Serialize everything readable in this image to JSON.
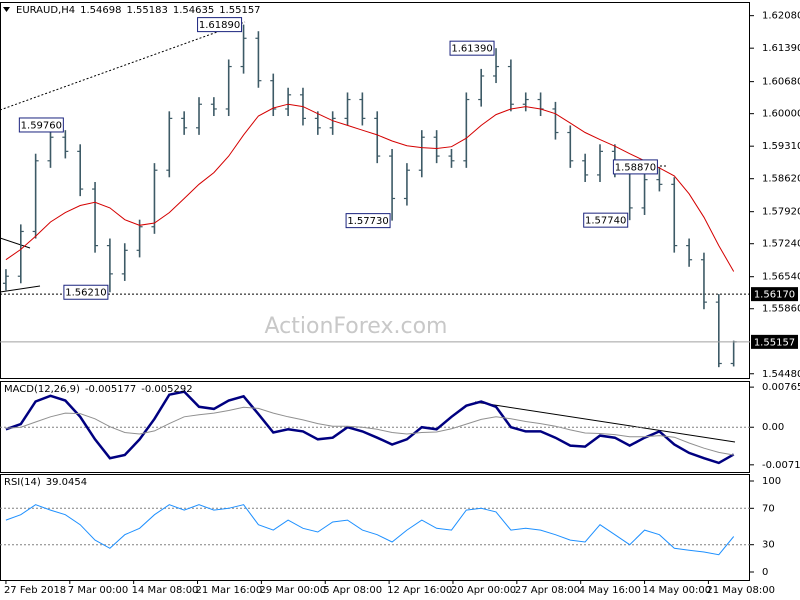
{
  "chart_data": [
    {
      "type": "ohlc",
      "title": "EURAUD,H4",
      "color": "#3d5a66",
      "open": [
        1.564,
        1.5655,
        1.575,
        1.59,
        1.595,
        1.592,
        1.584,
        1.572,
        1.566,
        1.571,
        1.576,
        1.588,
        1.599,
        1.597,
        1.602,
        1.601,
        1.61,
        1.616,
        1.607,
        1.601,
        1.604,
        1.599,
        1.597,
        1.599,
        1.603,
        1.599,
        1.591,
        1.582,
        1.588,
        1.595,
        1.591,
        1.59,
        1.603,
        1.608,
        1.61,
        1.602,
        1.603,
        1.601,
        1.596,
        1.59,
        1.587,
        1.592,
        1.588,
        1.58,
        1.586,
        1.585,
        1.572,
        1.569,
        1.56,
        1.54698
      ],
      "high": [
        1.567,
        1.5765,
        1.5915,
        1.5976,
        1.5965,
        1.5935,
        1.5855,
        1.5735,
        1.5725,
        1.5775,
        1.5895,
        1.6005,
        1.6005,
        1.6035,
        1.6035,
        1.6115,
        1.6189,
        1.6175,
        1.6085,
        1.6055,
        1.6055,
        1.6005,
        1.6005,
        1.6045,
        1.6045,
        1.6005,
        1.5925,
        1.5895,
        1.5965,
        1.5965,
        1.5925,
        1.6045,
        1.6095,
        1.6139,
        1.6115,
        1.6045,
        1.6045,
        1.6025,
        1.5975,
        1.5915,
        1.5935,
        1.5935,
        1.5895,
        1.5875,
        1.5887,
        1.5865,
        1.5735,
        1.5705,
        1.5617,
        1.55183
      ],
      "low": [
        1.5625,
        1.564,
        1.5735,
        1.5885,
        1.5905,
        1.5825,
        1.5705,
        1.5621,
        1.5645,
        1.5695,
        1.5745,
        1.5865,
        1.5955,
        1.5955,
        1.5995,
        1.5995,
        1.6085,
        1.6055,
        1.5995,
        1.5995,
        1.5975,
        1.5955,
        1.5955,
        1.5975,
        1.5975,
        1.5895,
        1.5773,
        1.5805,
        1.5865,
        1.5895,
        1.5885,
        1.5885,
        1.6015,
        1.6065,
        1.6005,
        1.6005,
        1.5995,
        1.5945,
        1.5885,
        1.5855,
        1.5855,
        1.5865,
        1.5774,
        1.5785,
        1.5835,
        1.5705,
        1.5675,
        1.5585,
        1.5462,
        1.54635
      ],
      "close": [
        1.5655,
        1.575,
        1.59,
        1.595,
        1.592,
        1.584,
        1.572,
        1.566,
        1.571,
        1.576,
        1.588,
        1.599,
        1.597,
        1.602,
        1.601,
        1.61,
        1.616,
        1.607,
        1.601,
        1.604,
        1.599,
        1.597,
        1.599,
        1.603,
        1.599,
        1.591,
        1.582,
        1.588,
        1.595,
        1.591,
        1.59,
        1.603,
        1.608,
        1.61,
        1.602,
        1.603,
        1.601,
        1.596,
        1.59,
        1.587,
        1.592,
        1.588,
        1.58,
        1.586,
        1.585,
        1.572,
        1.569,
        1.56,
        1.54698,
        1.55157
      ],
      "overlay": {
        "color": "#d40000",
        "values": [
          1.569,
          1.5712,
          1.574,
          1.577,
          1.579,
          1.5805,
          1.5812,
          1.58,
          1.5775,
          1.5763,
          1.5768,
          1.579,
          1.582,
          1.585,
          1.5875,
          1.591,
          1.5955,
          1.5995,
          1.6012,
          1.602,
          1.6015,
          1.6,
          1.5985,
          1.5975,
          1.5965,
          1.5955,
          1.5942,
          1.5932,
          1.5928,
          1.5926,
          1.593,
          1.5948,
          1.5975,
          1.5998,
          1.601,
          1.6015,
          1.601,
          1.6,
          1.598,
          1.596,
          1.5945,
          1.5931,
          1.5915,
          1.59,
          1.5885,
          1.5868,
          1.583,
          1.578,
          1.572,
          1.5665
        ]
      },
      "annotations": [
        {
          "index": 16,
          "value": 1.6189,
          "label": "1.61890"
        },
        {
          "index": 4,
          "value": 1.5976,
          "label": "1.59760"
        },
        {
          "index": 7,
          "value": 1.5621,
          "label": "1.56210"
        },
        {
          "index": 26,
          "value": 1.5773,
          "label": "1.57730"
        },
        {
          "index": 33,
          "value": 1.6139,
          "label": "1.61390"
        },
        {
          "index": 44,
          "value": 1.5887,
          "label": "1.58870"
        },
        {
          "index": 42,
          "value": 1.5774,
          "label": "1.57740"
        }
      ],
      "levels": [
        {
          "value": 1.5617,
          "label": "1.56170",
          "style": "dotted"
        }
      ],
      "last_price_line": true,
      "watermark": "ActionForex.com",
      "xlim": [
        -0.4,
        50.1
      ],
      "xticks": [
        {
          "value": 0,
          "label": "27 Feb 2018"
        },
        {
          "value": 4.3,
          "label": "7 Mar 00:00"
        },
        {
          "value": 8.6,
          "label": "14 Mar 08:00"
        },
        {
          "value": 12.9,
          "label": "21 Mar 16:00"
        },
        {
          "value": 17.2,
          "label": "29 Mar 00:00"
        },
        {
          "value": 21.5,
          "label": "5 Apr 08:00"
        },
        {
          "value": 25.8,
          "label": "12 Apr 16:00"
        },
        {
          "value": 30.1,
          "label": "20 Apr 00:00"
        },
        {
          "value": 34.4,
          "label": "27 Apr 08:00"
        },
        {
          "value": 38.7,
          "label": "4 May 16:00"
        },
        {
          "value": 43,
          "label": "14 May 00:00"
        },
        {
          "value": 47.3,
          "label": "21 May 08:00"
        }
      ],
      "ylim": [
        1.5439,
        1.6237
      ],
      "yticks": [
        {
          "value": 1.6208,
          "label": "1.62080"
        },
        {
          "value": 1.6139,
          "label": "1.61390"
        },
        {
          "value": 1.6068,
          "label": "1.60680"
        },
        {
          "value": 1.6,
          "label": "1.60000"
        },
        {
          "value": 1.5931,
          "label": "1.59310"
        },
        {
          "value": 1.5862,
          "label": "1.58620"
        },
        {
          "value": 1.5792,
          "label": "1.57920"
        },
        {
          "value": 1.5724,
          "label": "1.57240"
        },
        {
          "value": 1.5654,
          "label": "1.56540"
        },
        {
          "value": 1.5586,
          "label": "1.55860"
        },
        {
          "value": 1.5448,
          "label": "1.54480"
        }
      ]
    },
    {
      "type": "line",
      "title": "MACD(12,26,9)",
      "series": [
        {
          "color": "#000080",
          "width": 2.5,
          "values": [
            -0.0004,
            0.0006,
            0.0049,
            0.006,
            0.0051,
            0.002,
            -0.0023,
            -0.0059,
            -0.0053,
            -0.0023,
            0.0016,
            0.0062,
            0.0068,
            0.0039,
            0.0035,
            0.0051,
            0.0059,
            0.0025,
            -0.001,
            -0.0004,
            -0.0008,
            -0.0023,
            -0.002,
            0.0,
            -0.0008,
            -0.002,
            -0.0033,
            -0.0023,
            0.0,
            -0.0004,
            0.002,
            0.0041,
            0.0049,
            0.0039,
            0.0,
            -0.0008,
            -0.0008,
            -0.002,
            -0.0035,
            -0.0037,
            -0.0016,
            -0.002,
            -0.0035,
            -0.002,
            -0.0008,
            -0.0033,
            -0.0049,
            -0.0059,
            -0.0068,
            -0.005177
          ]
        },
        {
          "color": "#909090",
          "width": 1,
          "values": [
            -0.0002,
            0.0,
            0.001,
            0.002,
            0.0027,
            0.0026,
            0.0016,
            0.0001,
            -0.001,
            -0.0013,
            -0.0007,
            0.0007,
            0.002,
            0.0024,
            0.0027,
            0.0032,
            0.0038,
            0.0036,
            0.0027,
            0.002,
            0.0014,
            0.0007,
            0.0002,
            0.0002,
            0.0,
            -0.0004,
            -0.001,
            -0.0013,
            -0.001,
            -0.0009,
            -0.0003,
            0.0006,
            0.0015,
            0.002,
            0.0016,
            0.0011,
            0.0007,
            0.0002,
            -0.0005,
            -0.0011,
            -0.0012,
            -0.0014,
            -0.0018,
            -0.0018,
            -0.0016,
            -0.0019,
            -0.003,
            -0.004,
            -0.0048,
            -0.005292
          ]
        }
      ],
      "levels": [
        0
      ],
      "ylim": [
        -0.00854,
        0.00882
      ],
      "yticks": [
        {
          "value": 0.00765,
          "label": "0.00765"
        },
        {
          "value": 0,
          "label": "0.00"
        },
        {
          "value": -0.007171,
          "label": "-0.007171"
        }
      ]
    },
    {
      "type": "line",
      "title": "RSI(14)",
      "series": [
        {
          "color": "#1e90ff",
          "width": 1,
          "values": [
            57,
            63,
            74,
            68,
            63,
            52,
            35,
            26,
            41,
            48,
            63,
            74,
            68,
            74,
            68,
            70,
            74,
            52,
            46,
            57,
            48,
            44,
            55,
            57,
            46,
            41,
            33,
            46,
            57,
            48,
            46,
            68,
            70,
            66,
            46,
            48,
            46,
            41,
            35,
            33,
            52,
            41,
            30,
            46,
            41,
            26,
            24,
            22,
            19,
            39.0454
          ]
        }
      ],
      "levels": [
        70,
        30
      ],
      "ylim": [
        -8.8,
        107.7
      ],
      "yticks": [
        100,
        70,
        30,
        0
      ]
    }
  ]
}
